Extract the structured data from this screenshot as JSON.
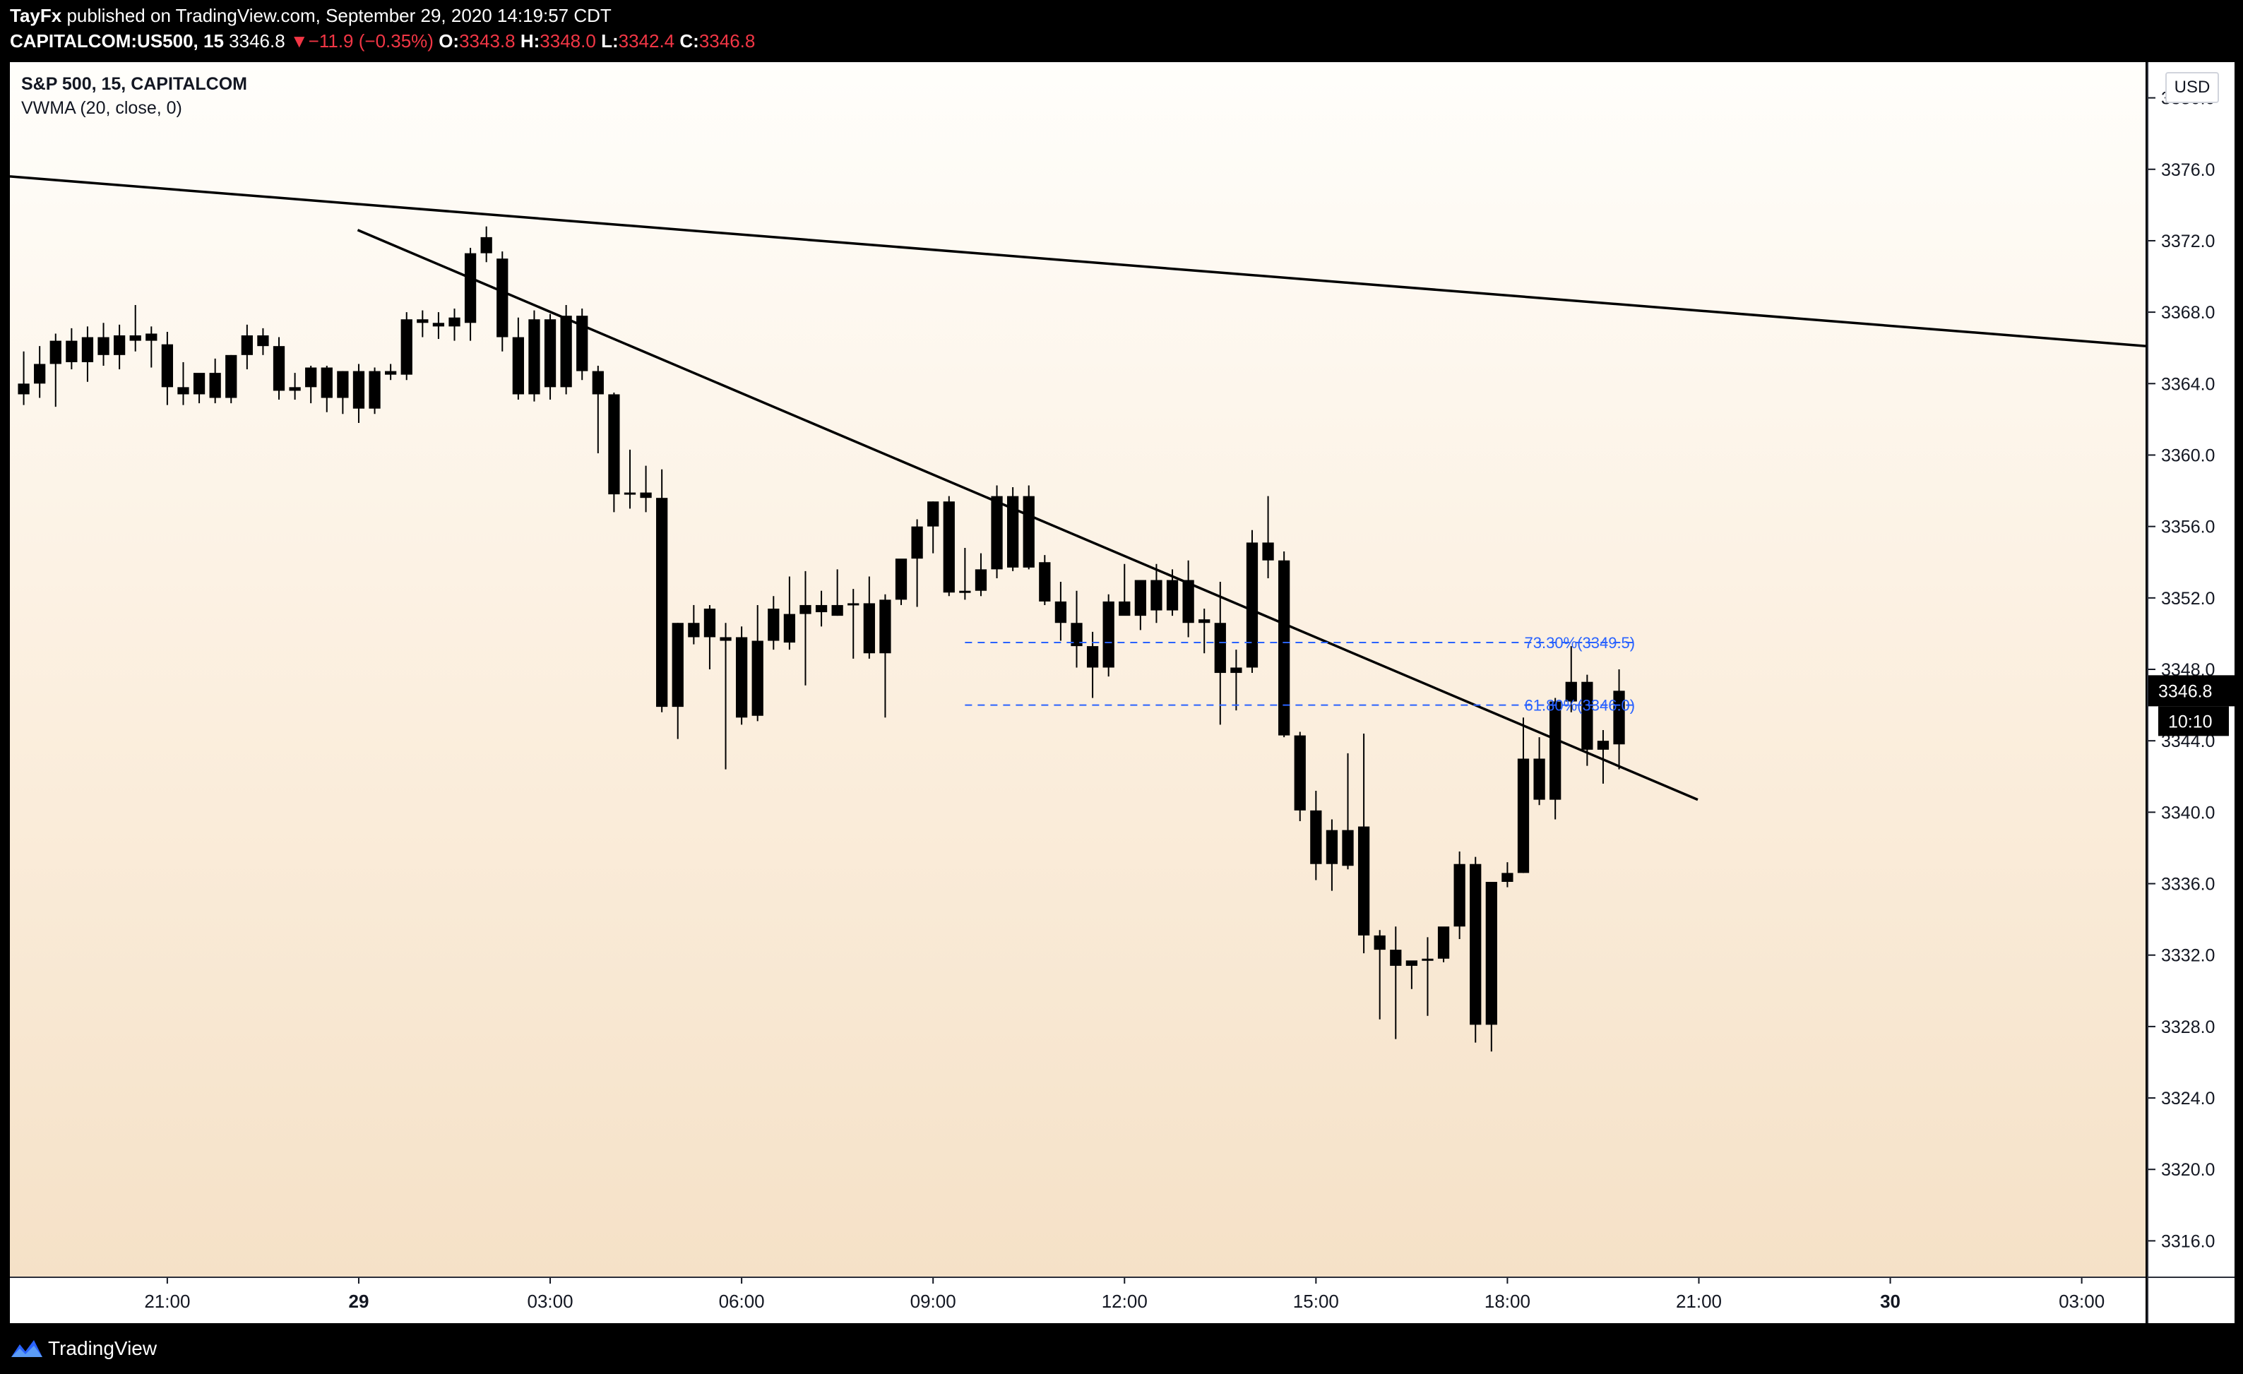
{
  "header": {
    "author": "TayFx",
    "published_text": "published on TradingView.com, September 29, 2020 14:19:57 CDT",
    "symbol_res": "CAPITALCOM:US500, 15",
    "last": "3346.8",
    "change_arrow": "▼",
    "change": "−11.9 (−0.35%)",
    "o_label": "O:",
    "o_value": "3343.8",
    "h_label": "H:",
    "h_value": "3348.0",
    "l_label": "L:",
    "l_value": "3342.4",
    "c_label": "C:",
    "c_value": "3346.8"
  },
  "legend": {
    "series_title": "S&P 500, 15, CAPITALCOM",
    "indicator": "VWMA (20, close, 0)"
  },
  "price_scale": {
    "currency": "USD",
    "last_price_label": "3346.8",
    "countdown": "10:10"
  },
  "footer": {
    "brand": "TradingView"
  },
  "colors": {
    "candle": "#000000",
    "fib_line": "#2962ff",
    "trendline": "#000000",
    "last_price_badge": "#000000"
  },
  "chart_data": {
    "type": "candlestick",
    "interval_minutes": 15,
    "ylim": [
      3314,
      3382
    ],
    "yticks": [
      3316,
      3320,
      3324,
      3328,
      3332,
      3336,
      3340,
      3344,
      3348,
      3352,
      3356,
      3360,
      3364,
      3368,
      3372,
      3376,
      3380
    ],
    "ytick_labels": [
      "3316.0",
      "3320.0",
      "3324.0",
      "3328.0",
      "3332.0",
      "3336.0",
      "3340.0",
      "3344.0",
      "3348.0",
      "3352.0",
      "3356.0",
      "3360.0",
      "3364.0",
      "3368.0",
      "3372.0",
      "3376.0",
      "3380.0"
    ],
    "x_axis": {
      "range": [
        "2020-09-28 18:32",
        "2020-09-30 04:00"
      ],
      "ticks": [
        "2020-09-28 21:00",
        "2020-09-29 00:00",
        "2020-09-29 03:00",
        "2020-09-29 06:00",
        "2020-09-29 09:00",
        "2020-09-29 12:00",
        "2020-09-29 15:00",
        "2020-09-29 18:00",
        "2020-09-29 21:00",
        "2020-09-30 00:00",
        "2020-09-30 03:00"
      ],
      "tick_labels": [
        "21:00",
        "29",
        "03:00",
        "06:00",
        "09:00",
        "12:00",
        "15:00",
        "18:00",
        "21:00",
        "30",
        "03:00"
      ]
    },
    "first_bar_time": "2020-09-28 18:45",
    "candles": [
      {
        "o": 3364.0,
        "h": 3365.8,
        "l": 3362.8,
        "c": 3363.4
      },
      {
        "o": 3364.0,
        "h": 3366.1,
        "l": 3363.2,
        "c": 3365.1
      },
      {
        "o": 3365.1,
        "h": 3366.8,
        "l": 3362.7,
        "c": 3366.4
      },
      {
        "o": 3366.4,
        "h": 3367.1,
        "l": 3364.8,
        "c": 3365.2
      },
      {
        "o": 3365.2,
        "h": 3367.2,
        "l": 3364.1,
        "c": 3366.6
      },
      {
        "o": 3366.6,
        "h": 3367.4,
        "l": 3365.0,
        "c": 3365.6
      },
      {
        "o": 3365.6,
        "h": 3367.3,
        "l": 3364.8,
        "c": 3366.7
      },
      {
        "o": 3366.7,
        "h": 3368.4,
        "l": 3365.8,
        "c": 3366.4
      },
      {
        "o": 3366.4,
        "h": 3367.2,
        "l": 3364.9,
        "c": 3366.8
      },
      {
        "o": 3366.2,
        "h": 3366.9,
        "l": 3362.8,
        "c": 3363.8
      },
      {
        "o": 3363.8,
        "h": 3365.2,
        "l": 3362.8,
        "c": 3363.4
      },
      {
        "o": 3363.4,
        "h": 3364.4,
        "l": 3362.9,
        "c": 3364.6
      },
      {
        "o": 3364.6,
        "h": 3365.4,
        "l": 3362.9,
        "c": 3363.2
      },
      {
        "o": 3363.2,
        "h": 3365.6,
        "l": 3362.9,
        "c": 3365.6
      },
      {
        "o": 3365.6,
        "h": 3367.3,
        "l": 3364.8,
        "c": 3366.7
      },
      {
        "o": 3366.7,
        "h": 3367.1,
        "l": 3365.6,
        "c": 3366.1
      },
      {
        "o": 3366.1,
        "h": 3366.6,
        "l": 3363.1,
        "c": 3363.6
      },
      {
        "o": 3363.6,
        "h": 3364.6,
        "l": 3363.1,
        "c": 3363.8
      },
      {
        "o": 3363.8,
        "h": 3365.0,
        "l": 3362.9,
        "c": 3364.9
      },
      {
        "o": 3364.9,
        "h": 3365.0,
        "l": 3362.4,
        "c": 3363.2
      },
      {
        "o": 3363.2,
        "h": 3364.7,
        "l": 3362.3,
        "c": 3364.7
      },
      {
        "o": 3364.7,
        "h": 3365.1,
        "l": 3361.8,
        "c": 3362.6
      },
      {
        "o": 3362.6,
        "h": 3364.9,
        "l": 3362.3,
        "c": 3364.7
      },
      {
        "o": 3364.7,
        "h": 3365.1,
        "l": 3364.2,
        "c": 3364.5
      },
      {
        "o": 3364.5,
        "h": 3368.0,
        "l": 3364.2,
        "c": 3367.6
      },
      {
        "o": 3367.6,
        "h": 3368.1,
        "l": 3366.6,
        "c": 3367.4
      },
      {
        "o": 3367.4,
        "h": 3368.0,
        "l": 3366.5,
        "c": 3367.2
      },
      {
        "o": 3367.2,
        "h": 3368.2,
        "l": 3366.4,
        "c": 3367.7
      },
      {
        "o": 3367.4,
        "h": 3371.6,
        "l": 3366.4,
        "c": 3371.3
      },
      {
        "o": 3371.3,
        "h": 3372.8,
        "l": 3370.8,
        "c": 3372.2
      },
      {
        "o": 3371.0,
        "h": 3371.4,
        "l": 3365.8,
        "c": 3366.6
      },
      {
        "o": 3366.6,
        "h": 3367.7,
        "l": 3363.1,
        "c": 3363.4
      },
      {
        "o": 3363.4,
        "h": 3368.1,
        "l": 3363.0,
        "c": 3367.6
      },
      {
        "o": 3367.6,
        "h": 3367.9,
        "l": 3363.1,
        "c": 3363.8
      },
      {
        "o": 3363.8,
        "h": 3368.4,
        "l": 3363.4,
        "c": 3367.8
      },
      {
        "o": 3367.8,
        "h": 3368.2,
        "l": 3364.2,
        "c": 3364.7
      },
      {
        "o": 3364.7,
        "h": 3365.0,
        "l": 3360.1,
        "c": 3363.4
      },
      {
        "o": 3363.4,
        "h": 3363.5,
        "l": 3356.8,
        "c": 3357.8
      },
      {
        "o": 3357.8,
        "h": 3360.3,
        "l": 3357.0,
        "c": 3357.9
      },
      {
        "o": 3357.9,
        "h": 3359.4,
        "l": 3356.8,
        "c": 3357.6
      },
      {
        "o": 3357.6,
        "h": 3359.2,
        "l": 3345.6,
        "c": 3345.9
      },
      {
        "o": 3345.9,
        "h": 3350.6,
        "l": 3344.1,
        "c": 3350.6
      },
      {
        "o": 3350.6,
        "h": 3351.6,
        "l": 3349.4,
        "c": 3349.8
      },
      {
        "o": 3349.8,
        "h": 3351.6,
        "l": 3348.0,
        "c": 3351.4
      },
      {
        "o": 3349.6,
        "h": 3350.6,
        "l": 3342.4,
        "c": 3349.8
      },
      {
        "o": 3349.8,
        "h": 3350.4,
        "l": 3344.9,
        "c": 3345.3
      },
      {
        "o": 3345.4,
        "h": 3351.6,
        "l": 3345.1,
        "c": 3349.6
      },
      {
        "o": 3349.6,
        "h": 3352.1,
        "l": 3349.1,
        "c": 3351.4
      },
      {
        "o": 3349.5,
        "h": 3353.2,
        "l": 3349.1,
        "c": 3351.1
      },
      {
        "o": 3351.1,
        "h": 3353.5,
        "l": 3347.1,
        "c": 3351.6
      },
      {
        "o": 3351.6,
        "h": 3352.4,
        "l": 3350.4,
        "c": 3351.2
      },
      {
        "o": 3351.0,
        "h": 3353.6,
        "l": 3351.0,
        "c": 3351.6
      },
      {
        "o": 3351.6,
        "h": 3352.5,
        "l": 3348.6,
        "c": 3351.7
      },
      {
        "o": 3351.7,
        "h": 3353.2,
        "l": 3348.6,
        "c": 3348.9
      },
      {
        "o": 3348.9,
        "h": 3352.2,
        "l": 3345.3,
        "c": 3351.9
      },
      {
        "o": 3351.9,
        "h": 3353.9,
        "l": 3351.6,
        "c": 3354.2
      },
      {
        "o": 3354.2,
        "h": 3356.4,
        "l": 3351.5,
        "c": 3356.0
      },
      {
        "o": 3356.0,
        "h": 3357.4,
        "l": 3354.5,
        "c": 3357.4
      },
      {
        "o": 3357.4,
        "h": 3357.7,
        "l": 3352.1,
        "c": 3352.3
      },
      {
        "o": 3352.3,
        "h": 3354.8,
        "l": 3351.9,
        "c": 3352.4
      },
      {
        "o": 3352.4,
        "h": 3354.5,
        "l": 3352.1,
        "c": 3353.6
      },
      {
        "o": 3353.6,
        "h": 3358.3,
        "l": 3353.1,
        "c": 3357.7
      },
      {
        "o": 3357.7,
        "h": 3358.2,
        "l": 3353.5,
        "c": 3353.7
      },
      {
        "o": 3353.7,
        "h": 3358.3,
        "l": 3353.6,
        "c": 3357.7
      },
      {
        "o": 3354.0,
        "h": 3354.4,
        "l": 3351.6,
        "c": 3351.8
      },
      {
        "o": 3351.8,
        "h": 3352.9,
        "l": 3349.6,
        "c": 3350.6
      },
      {
        "o": 3350.6,
        "h": 3352.4,
        "l": 3348.1,
        "c": 3349.3
      },
      {
        "o": 3349.3,
        "h": 3350.1,
        "l": 3346.4,
        "c": 3348.1
      },
      {
        "o": 3348.1,
        "h": 3352.2,
        "l": 3347.6,
        "c": 3351.8
      },
      {
        "o": 3351.8,
        "h": 3353.9,
        "l": 3351.6,
        "c": 3351.0
      },
      {
        "o": 3351.0,
        "h": 3352.9,
        "l": 3350.2,
        "c": 3353.0
      },
      {
        "o": 3353.0,
        "h": 3353.9,
        "l": 3350.6,
        "c": 3351.3
      },
      {
        "o": 3351.3,
        "h": 3353.6,
        "l": 3351.0,
        "c": 3353.0
      },
      {
        "o": 3353.0,
        "h": 3354.1,
        "l": 3349.8,
        "c": 3350.6
      },
      {
        "o": 3350.6,
        "h": 3351.4,
        "l": 3348.9,
        "c": 3350.8
      },
      {
        "o": 3350.6,
        "h": 3352.9,
        "l": 3344.9,
        "c": 3347.8
      },
      {
        "o": 3347.8,
        "h": 3349.1,
        "l": 3345.7,
        "c": 3348.1
      },
      {
        "o": 3348.1,
        "h": 3355.8,
        "l": 3347.8,
        "c": 3355.1
      },
      {
        "o": 3355.1,
        "h": 3357.7,
        "l": 3353.1,
        "c": 3354.1
      },
      {
        "o": 3354.1,
        "h": 3354.6,
        "l": 3344.2,
        "c": 3344.3
      },
      {
        "o": 3344.3,
        "h": 3344.5,
        "l": 3339.5,
        "c": 3340.1
      },
      {
        "o": 3340.1,
        "h": 3341.2,
        "l": 3336.2,
        "c": 3337.1
      },
      {
        "o": 3337.1,
        "h": 3339.6,
        "l": 3335.6,
        "c": 3339.0
      },
      {
        "o": 3339.0,
        "h": 3343.3,
        "l": 3336.8,
        "c": 3337.0
      },
      {
        "o": 3339.2,
        "h": 3344.4,
        "l": 3332.1,
        "c": 3333.1
      },
      {
        "o": 3333.1,
        "h": 3333.4,
        "l": 3328.4,
        "c": 3332.3
      },
      {
        "o": 3332.3,
        "h": 3333.6,
        "l": 3327.3,
        "c": 3331.4
      },
      {
        "o": 3331.4,
        "h": 3331.6,
        "l": 3330.1,
        "c": 3331.7
      },
      {
        "o": 3331.7,
        "h": 3333.0,
        "l": 3328.6,
        "c": 3331.8
      },
      {
        "o": 3331.8,
        "h": 3333.4,
        "l": 3331.6,
        "c": 3333.6
      },
      {
        "o": 3333.6,
        "h": 3337.8,
        "l": 3332.9,
        "c": 3337.1
      },
      {
        "o": 3337.1,
        "h": 3337.5,
        "l": 3327.1,
        "c": 3328.1
      },
      {
        "o": 3328.1,
        "h": 3336.1,
        "l": 3326.6,
        "c": 3336.1
      },
      {
        "o": 3336.1,
        "h": 3337.2,
        "l": 3335.8,
        "c": 3336.6
      },
      {
        "o": 3336.6,
        "h": 3345.3,
        "l": 3336.6,
        "c": 3343.0
      },
      {
        "o": 3343.0,
        "h": 3344.2,
        "l": 3340.4,
        "c": 3340.7
      },
      {
        "o": 3340.7,
        "h": 3346.4,
        "l": 3339.6,
        "c": 3346.2
      },
      {
        "o": 3346.2,
        "h": 3349.3,
        "l": 3345.6,
        "c": 3347.3
      },
      {
        "o": 3347.3,
        "h": 3347.7,
        "l": 3342.6,
        "c": 3343.5
      },
      {
        "o": 3343.5,
        "h": 3344.6,
        "l": 3341.6,
        "c": 3344.0
      },
      {
        "o": 3343.8,
        "h": 3348.0,
        "l": 3342.4,
        "c": 3346.8
      }
    ],
    "trendlines": [
      {
        "from": {
          "time": "2020-09-28 18:32",
          "price": 3375.6
        },
        "to": {
          "time": "2020-09-30 04:00",
          "price": 3366.1
        }
      },
      {
        "from": {
          "time": "2020-09-28 23:59",
          "price": 3372.6
        },
        "to": {
          "time": "2020-09-29 20:59",
          "price": 3340.7
        }
      }
    ],
    "fib_levels": [
      {
        "label": "73.30%(3349.5)",
        "price": 3349.5,
        "from": "2020-09-29 09:30",
        "to": "2020-09-29 20:00"
      },
      {
        "label": "61.80%(3346.0)",
        "price": 3346.0,
        "from": "2020-09-29 09:30",
        "to": "2020-09-29 20:00"
      }
    ]
  }
}
